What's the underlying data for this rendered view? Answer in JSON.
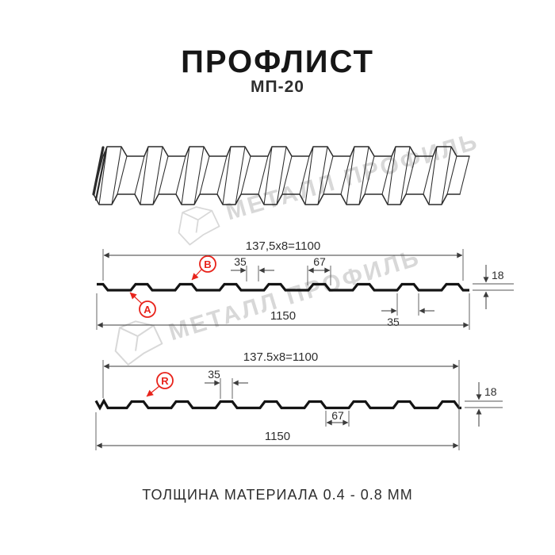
{
  "header": {
    "title": "ПРОФЛИСТ",
    "subtitle": "МП-20"
  },
  "watermark": {
    "text": "МЕТАЛЛ ПРОФИЛЬ",
    "color": "#d8d8d8"
  },
  "profile_a": {
    "dim_width_top": "137,5x8=1100",
    "dim_rib_top": "35",
    "dim_pan": "67",
    "dim_height": "18",
    "dim_rib_bottom": "35",
    "dim_total": "1150",
    "label_a": "A",
    "label_b": "B"
  },
  "profile_r": {
    "dim_width_top": "137.5x8=1100",
    "dim_rib_top": "35",
    "dim_pan": "67",
    "dim_height": "18",
    "dim_total": "1150",
    "label_r": "R"
  },
  "footer": {
    "text": "ТОЛЩИНА МАТЕРИАЛА 0.4 - 0.8 ММ"
  },
  "colors": {
    "line": "#141414",
    "dimension": "#3c3c3c",
    "accent_red": "#e8231b",
    "watermark": "#d8d8d8"
  }
}
